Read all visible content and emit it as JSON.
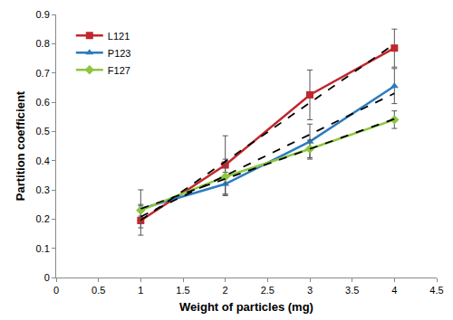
{
  "chart_data": {
    "type": "line",
    "x_label": "Weight of particles (mg)",
    "y_label": "Partition coefficient",
    "x": [
      1,
      2,
      3,
      4
    ],
    "series": [
      {
        "name": "L121",
        "color": "#c1272d",
        "marker": "square",
        "values": [
          0.195,
          0.385,
          0.625,
          0.785
        ],
        "error": [
          0.05,
          0.1,
          0.085,
          0.065
        ],
        "trendline": {
          "x": [
            1,
            4
          ],
          "values": [
            0.196,
            0.799
          ],
          "color": "#000000",
          "line_style": "dashed"
        }
      },
      {
        "name": "P123",
        "color": "#2b7bc0",
        "marker": "triangle",
        "values": [
          0.235,
          0.32,
          0.465,
          0.655
        ],
        "error": [
          0.065,
          0.04,
          0.06,
          0.06
        ],
        "trendline": {
          "x": [
            1,
            4
          ],
          "values": [
            0.208,
            0.63
          ],
          "color": "#000000",
          "line_style": "dashed"
        }
      },
      {
        "name": "F127",
        "color": "#8dc63f",
        "marker": "diamond",
        "values": [
          0.23,
          0.345,
          0.44,
          0.54
        ],
        "error": [
          0.02,
          0.06,
          0.03,
          0.03
        ],
        "trendline": {
          "x": [
            1,
            4
          ],
          "values": [
            0.235,
            0.5425
          ],
          "color": "#000000",
          "line_style": "dashed"
        }
      }
    ],
    "xlim": [
      0,
      4.5
    ],
    "xticks": [
      0,
      0.5,
      1,
      1.5,
      2,
      2.5,
      3,
      3.5,
      4,
      4.5
    ],
    "ylim": [
      0,
      0.9
    ],
    "yticks": [
      0,
      0.1,
      0.2,
      0.3,
      0.4,
      0.5,
      0.6,
      0.7,
      0.8,
      0.9
    ],
    "grid": false,
    "legend": "top-left"
  }
}
